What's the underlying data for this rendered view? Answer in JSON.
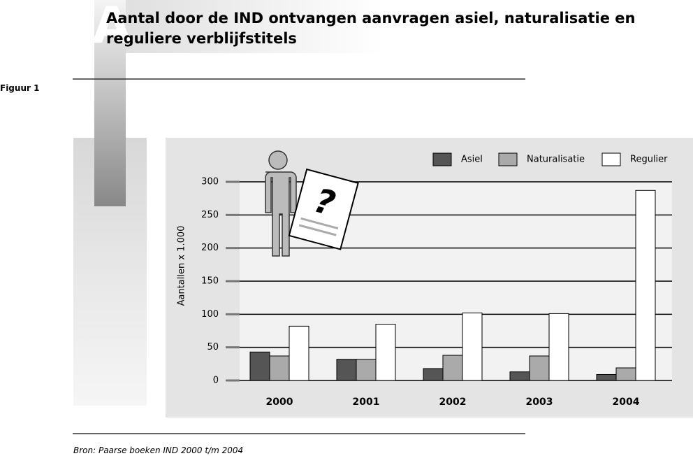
{
  "section_letter": "A",
  "figure_label": "Figuur 1",
  "source": "Bron: Paarse boeken IND 2000 t/m 2004",
  "chart_data": {
    "type": "bar",
    "title": "Aantal door de IND ontvangen aanvragen asiel, naturalisatie en reguliere verblijfstitels",
    "y_label": "Aantallen x 1.000",
    "categories": [
      "2000",
      "2001",
      "2002",
      "2003",
      "2004"
    ],
    "series": [
      {
        "name": "Asiel",
        "color": "#555555",
        "values": [
          43,
          32,
          18,
          13,
          9
        ]
      },
      {
        "name": "Naturalisatie",
        "color": "#aaaaaa",
        "values": [
          37,
          32,
          38,
          37,
          19
        ]
      },
      {
        "name": "Regulier",
        "color": "#ffffff",
        "values": [
          82,
          85,
          102,
          101,
          287
        ]
      }
    ],
    "ylim": [
      0,
      300
    ],
    "yticks": [
      0,
      50,
      100,
      150,
      200,
      250,
      300
    ],
    "grid": true,
    "legend": "top-right"
  }
}
